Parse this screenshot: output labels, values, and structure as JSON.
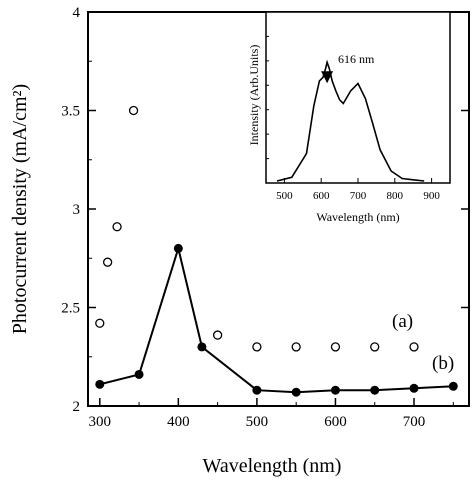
{
  "chart_data": [
    {
      "type": "scatter",
      "title": "",
      "xlabel": "Wavelength (nm)",
      "ylabel": "Photocurrent density (mA/cm²)",
      "xlim": [
        285,
        770
      ],
      "ylim": [
        2,
        4
      ],
      "x_ticks": [
        "300",
        "400",
        "500",
        "600",
        "700"
      ],
      "x_tick_values": [
        300,
        400,
        500,
        600,
        700
      ],
      "y_ticks": [
        "2",
        "2.5",
        "3",
        "3.5",
        "4"
      ],
      "y_tick_values": [
        2,
        2.5,
        3,
        3.5,
        4
      ],
      "grid": false,
      "series": [
        {
          "name": "(a)",
          "marker": "open-circle",
          "connected": false,
          "x": [
            300,
            310,
            322,
            343,
            450,
            500,
            550,
            600,
            650,
            700
          ],
          "y": [
            2.42,
            2.73,
            2.91,
            3.5,
            2.36,
            2.3,
            2.3,
            2.3,
            2.3,
            2.3
          ]
        },
        {
          "name": "(b)",
          "marker": "filled-circle",
          "connected": true,
          "x": [
            300,
            350,
            400,
            430,
            500,
            550,
            600,
            650,
            700,
            750
          ],
          "y": [
            2.11,
            2.16,
            2.8,
            2.3,
            2.08,
            2.07,
            2.08,
            2.08,
            2.09,
            2.1
          ]
        }
      ]
    },
    {
      "type": "line",
      "title": "",
      "xlabel": "Wavelength (nm)",
      "ylabel": "Intensity (Arb.Units)",
      "xlim": [
        450,
        950
      ],
      "x_ticks": [
        "500",
        "600",
        "700",
        "800",
        "900"
      ],
      "x_tick_values": [
        500,
        600,
        700,
        800,
        900
      ],
      "annotation": "616  nm",
      "annotation_x": 616,
      "series": [
        {
          "name": "",
          "x": [
            480,
            520,
            560,
            580,
            595,
            605,
            612,
            616,
            622,
            630,
            640,
            650,
            660,
            680,
            700,
            720,
            740,
            760,
            790,
            820,
            850,
            880
          ],
          "y": [
            0.0,
            0.03,
            0.22,
            0.6,
            0.8,
            0.83,
            0.9,
            0.95,
            0.9,
            0.8,
            0.72,
            0.65,
            0.62,
            0.72,
            0.78,
            0.66,
            0.46,
            0.25,
            0.08,
            0.02,
            0.01,
            0.0
          ]
        }
      ]
    }
  ]
}
